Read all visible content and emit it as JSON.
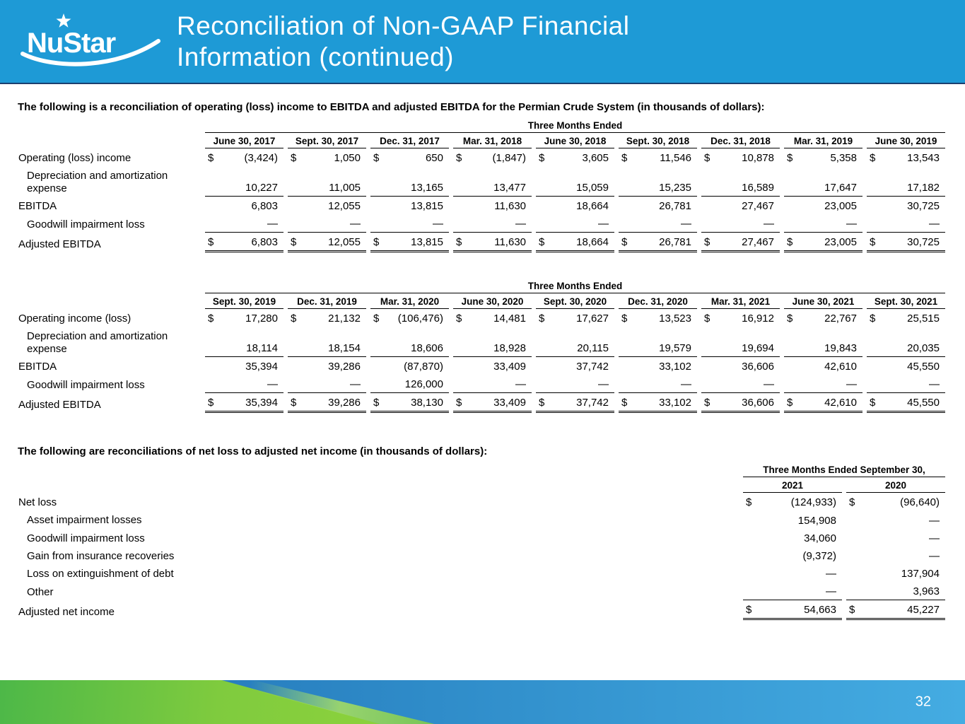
{
  "slide": {
    "logo_text": "NuStar",
    "title_line1": "Reconciliation of Non-GAAP Financial",
    "title_line2": "Information (continued)",
    "page_number": "32"
  },
  "colors": {
    "header_blue": "#1E9AD6",
    "footer_blue_dark": "#2170B4",
    "footer_blue_light": "#44ACE2",
    "footer_green_dark": "#4DB848",
    "footer_green_light": "#8DD23C",
    "text_black": "#000000",
    "title_white": "#FFFFFF"
  },
  "intro1": "The following is a reconciliation of operating (loss) income to EBITDA and adjusted EBITDA for the Permian Crude System (in thousands of dollars):",
  "intro2": "The following are reconciliations of net loss to adjusted net income (in thousands of dollars):",
  "table1": {
    "group_header": "Three Months Ended",
    "columns": [
      "June 30, 2017",
      "Sept. 30, 2017",
      "Dec. 31, 2017",
      "Mar. 31, 2018",
      "June 30, 2018",
      "Sept. 30, 2018",
      "Dec. 31, 2018",
      "Mar. 31, 2019",
      "June 30, 2019"
    ],
    "rows": [
      {
        "label": "Operating (loss) income",
        "indent": false,
        "dollar": true,
        "line": "none",
        "values": [
          "(3,424)",
          "1,050",
          "650",
          "(1,847)",
          "3,605",
          "11,546",
          "10,878",
          "5,358",
          "13,543"
        ]
      },
      {
        "label": "Depreciation and amortization expense",
        "indent": true,
        "dollar": false,
        "line": "single",
        "values": [
          "10,227",
          "11,005",
          "13,165",
          "13,477",
          "15,059",
          "15,235",
          "16,589",
          "17,647",
          "17,182"
        ]
      },
      {
        "label": "EBITDA",
        "indent": false,
        "dollar": false,
        "line": "none",
        "values": [
          "6,803",
          "12,055",
          "13,815",
          "11,630",
          "18,664",
          "26,781",
          "27,467",
          "23,005",
          "30,725"
        ]
      },
      {
        "label": "Goodwill impairment loss",
        "indent": true,
        "dollar": false,
        "line": "single",
        "values": [
          "—",
          "—",
          "—",
          "—",
          "—",
          "—",
          "—",
          "—",
          "—"
        ]
      },
      {
        "label": "Adjusted EBITDA",
        "indent": false,
        "dollar": true,
        "line": "double",
        "values": [
          "6,803",
          "12,055",
          "13,815",
          "11,630",
          "18,664",
          "26,781",
          "27,467",
          "23,005",
          "30,725"
        ]
      }
    ]
  },
  "table2": {
    "group_header": "Three Months Ended",
    "columns": [
      "Sept. 30, 2019",
      "Dec. 31, 2019",
      "Mar. 31, 2020",
      "June 30, 2020",
      "Sept. 30, 2020",
      "Dec. 31, 2020",
      "Mar. 31, 2021",
      "June 30, 2021",
      "Sept. 30, 2021"
    ],
    "rows": [
      {
        "label": "Operating income (loss)",
        "indent": false,
        "dollar": true,
        "line": "none",
        "values": [
          "17,280",
          "21,132",
          "(106,476)",
          "14,481",
          "17,627",
          "13,523",
          "16,912",
          "22,767",
          "25,515"
        ]
      },
      {
        "label": "Depreciation and amortization expense",
        "indent": true,
        "dollar": false,
        "line": "single",
        "values": [
          "18,114",
          "18,154",
          "18,606",
          "18,928",
          "20,115",
          "19,579",
          "19,694",
          "19,843",
          "20,035"
        ]
      },
      {
        "label": "EBITDA",
        "indent": false,
        "dollar": false,
        "line": "none",
        "values": [
          "35,394",
          "39,286",
          "(87,870)",
          "33,409",
          "37,742",
          "33,102",
          "36,606",
          "42,610",
          "45,550"
        ]
      },
      {
        "label": "Goodwill impairment loss",
        "indent": true,
        "dollar": false,
        "line": "single",
        "values": [
          "—",
          "—",
          "126,000",
          "—",
          "—",
          "—",
          "—",
          "—",
          "—"
        ]
      },
      {
        "label": "Adjusted EBITDA",
        "indent": false,
        "dollar": true,
        "line": "double",
        "values": [
          "35,394",
          "39,286",
          "38,130",
          "33,409",
          "37,742",
          "33,102",
          "36,606",
          "42,610",
          "45,550"
        ]
      }
    ]
  },
  "table3": {
    "group_header": "Three Months Ended September 30,",
    "columns": [
      "2021",
      "2020"
    ],
    "rows": [
      {
        "label": "Net loss",
        "indent": false,
        "dollar": true,
        "line": "none",
        "values": [
          "(124,933)",
          "(96,640)"
        ]
      },
      {
        "label": "Asset impairment losses",
        "indent": true,
        "dollar": false,
        "line": "none",
        "values": [
          "154,908",
          "—"
        ]
      },
      {
        "label": "Goodwill impairment loss",
        "indent": true,
        "dollar": false,
        "line": "none",
        "values": [
          "34,060",
          "—"
        ]
      },
      {
        "label": "Gain from insurance recoveries",
        "indent": true,
        "dollar": false,
        "line": "none",
        "values": [
          "(9,372)",
          "—"
        ]
      },
      {
        "label": "Loss on extinguishment of debt",
        "indent": true,
        "dollar": false,
        "line": "none",
        "values": [
          "—",
          "137,904"
        ]
      },
      {
        "label": "Other",
        "indent": true,
        "dollar": false,
        "line": "single",
        "values": [
          "—",
          "3,963"
        ]
      },
      {
        "label": "Adjusted net income",
        "indent": false,
        "dollar": true,
        "line": "double",
        "values": [
          "54,663",
          "45,227"
        ]
      }
    ]
  }
}
